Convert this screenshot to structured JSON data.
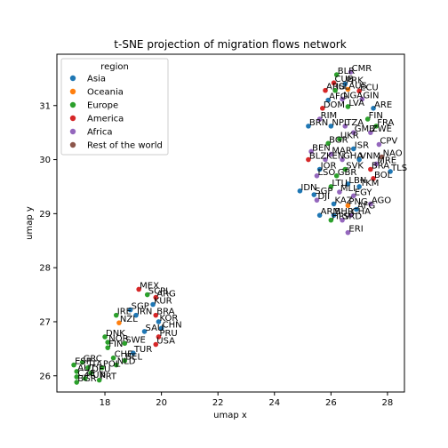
{
  "chart_data": {
    "type": "scatter",
    "title": "t-SNE projection of migration flows network",
    "xlabel": "umap x",
    "ylabel": "umap y",
    "xlim": [
      16.3,
      28.6
    ],
    "ylim": [
      25.7,
      31.95
    ],
    "xticks": [
      18,
      20,
      22,
      24,
      26,
      28
    ],
    "yticks": [
      26,
      27,
      28,
      29,
      30,
      31
    ],
    "grid": false,
    "legend": {
      "title": "region",
      "placement": "top-left",
      "entries": [
        {
          "name": "Asia",
          "color": "#1f77b4"
        },
        {
          "name": "Oceania",
          "color": "#ff7f0e"
        },
        {
          "name": "Europe",
          "color": "#2ca02c"
        },
        {
          "name": "America",
          "color": "#d62728"
        },
        {
          "name": "Africa",
          "color": "#9467bd"
        },
        {
          "name": "Rest of the world",
          "color": "#8c564b"
        }
      ]
    },
    "points": [
      {
        "label": "CMR",
        "x": 26.7,
        "y": 31.62,
        "region": "Africa"
      },
      {
        "label": "BLR",
        "x": 26.2,
        "y": 31.57,
        "region": "Europe"
      },
      {
        "label": "CUB",
        "x": 26.1,
        "y": 31.42,
        "region": "America"
      },
      {
        "label": "PRK",
        "x": 26.5,
        "y": 31.4,
        "region": "Asia"
      },
      {
        "label": "ARG",
        "x": 25.8,
        "y": 31.28,
        "region": "America"
      },
      {
        "label": "ISL",
        "x": 26.15,
        "y": 31.28,
        "region": "Europe"
      },
      {
        "label": "AUS",
        "x": 26.6,
        "y": 31.3,
        "region": "Oceania"
      },
      {
        "label": "ECU",
        "x": 27.0,
        "y": 31.27,
        "region": "America"
      },
      {
        "label": "AFG",
        "x": 25.9,
        "y": 31.1,
        "region": "Asia"
      },
      {
        "label": "NGA",
        "x": 26.4,
        "y": 31.12,
        "region": "Africa"
      },
      {
        "label": "GIN",
        "x": 27.1,
        "y": 31.12,
        "region": "Africa"
      },
      {
        "label": "DOM",
        "x": 25.7,
        "y": 30.95,
        "region": "America"
      },
      {
        "label": "LVA",
        "x": 26.6,
        "y": 30.98,
        "region": "Europe"
      },
      {
        "label": "ARE",
        "x": 27.5,
        "y": 30.95,
        "region": "Asia"
      },
      {
        "label": "RIM",
        "x": 25.6,
        "y": 30.75,
        "region": "Africa"
      },
      {
        "label": "FIN",
        "x": 27.3,
        "y": 30.75,
        "region": "Europe"
      },
      {
        "label": "BRN",
        "x": 25.2,
        "y": 30.62,
        "region": "Asia"
      },
      {
        "label": "NPL",
        "x": 26.0,
        "y": 30.62,
        "region": "Asia"
      },
      {
        "label": "TZA",
        "x": 26.5,
        "y": 30.62,
        "region": "Africa"
      },
      {
        "label": "FRA",
        "x": 27.6,
        "y": 30.62,
        "region": "Europe"
      },
      {
        "label": "GMB",
        "x": 26.8,
        "y": 30.5,
        "region": "Africa"
      },
      {
        "label": "ZWE",
        "x": 27.4,
        "y": 30.5,
        "region": "Africa"
      },
      {
        "label": "UKR",
        "x": 26.3,
        "y": 30.38,
        "region": "Europe"
      },
      {
        "label": "BGR",
        "x": 25.9,
        "y": 30.3,
        "region": "Europe"
      },
      {
        "label": "CPV",
        "x": 27.7,
        "y": 30.28,
        "region": "Africa"
      },
      {
        "label": "ISR",
        "x": 26.8,
        "y": 30.2,
        "region": "Asia"
      },
      {
        "label": "BEN",
        "x": 25.3,
        "y": 30.15,
        "region": "Africa"
      },
      {
        "label": "MAR",
        "x": 26.0,
        "y": 30.1,
        "region": "Africa"
      },
      {
        "label": "NAO",
        "x": 27.8,
        "y": 30.05,
        "region": "Rest of the world"
      },
      {
        "label": "BLZ",
        "x": 25.2,
        "y": 30.0,
        "region": "America"
      },
      {
        "label": "KEN",
        "x": 25.8,
        "y": 30.0,
        "region": "Africa"
      },
      {
        "label": "GHA",
        "x": 26.4,
        "y": 30.0,
        "region": "Africa"
      },
      {
        "label": "VNM",
        "x": 27.0,
        "y": 30.0,
        "region": "Asia"
      },
      {
        "label": "MRE",
        "x": 27.6,
        "y": 29.92,
        "region": "Africa"
      },
      {
        "label": "JOR",
        "x": 25.6,
        "y": 29.82,
        "region": "Asia"
      },
      {
        "label": "SVK",
        "x": 26.5,
        "y": 29.82,
        "region": "Europe"
      },
      {
        "label": "BRA",
        "x": 27.4,
        "y": 29.82,
        "region": "America"
      },
      {
        "label": "TLS",
        "x": 28.1,
        "y": 29.78,
        "region": "Asia"
      },
      {
        "label": "GBR",
        "x": 26.2,
        "y": 29.7,
        "region": "Europe"
      },
      {
        "label": "BOL",
        "x": 27.5,
        "y": 29.65,
        "region": "America"
      },
      {
        "label": "LSO",
        "x": 25.5,
        "y": 29.7,
        "region": "Africa"
      },
      {
        "label": "LBN",
        "x": 26.6,
        "y": 29.55,
        "region": "Asia"
      },
      {
        "label": "LTU",
        "x": 26.0,
        "y": 29.5,
        "region": "Europe"
      },
      {
        "label": "TKM",
        "x": 27.0,
        "y": 29.5,
        "region": "Asia"
      },
      {
        "label": "IDN",
        "x": 24.9,
        "y": 29.42,
        "region": "Asia"
      },
      {
        "label": "SGP",
        "x": 25.4,
        "y": 29.35,
        "region": "Asia"
      },
      {
        "label": "MLI",
        "x": 26.3,
        "y": 29.4,
        "region": "Africa"
      },
      {
        "label": "EGY",
        "x": 26.8,
        "y": 29.33,
        "region": "Africa"
      },
      {
        "label": "DJI",
        "x": 25.5,
        "y": 29.25,
        "region": "Africa"
      },
      {
        "label": "KAZ",
        "x": 26.1,
        "y": 29.18,
        "region": "Asia"
      },
      {
        "label": "AGO",
        "x": 27.4,
        "y": 29.18,
        "region": "Africa"
      },
      {
        "label": "PNG",
        "x": 26.6,
        "y": 29.15,
        "region": "Oceania"
      },
      {
        "label": "AFG",
        "x": 26.9,
        "y": 29.08,
        "region": "Asia"
      },
      {
        "label": "ARM",
        "x": 25.6,
        "y": 28.97,
        "region": "Asia"
      },
      {
        "label": "BHR",
        "x": 26.1,
        "y": 28.97,
        "region": "Asia"
      },
      {
        "label": "CHA",
        "x": 26.7,
        "y": 28.97,
        "region": "Africa"
      },
      {
        "label": "HRV",
        "x": 26.0,
        "y": 28.88,
        "region": "Europe"
      },
      {
        "label": "SRD",
        "x": 26.4,
        "y": 28.88,
        "region": "Africa"
      },
      {
        "label": "ERI",
        "x": 26.6,
        "y": 28.65,
        "region": "Africa"
      },
      {
        "label": "MEX",
        "x": 19.2,
        "y": 27.6,
        "region": "America"
      },
      {
        "label": "SCPL",
        "x": 19.5,
        "y": 27.5,
        "region": "Europe"
      },
      {
        "label": "ARG",
        "x": 19.8,
        "y": 27.45,
        "region": "America"
      },
      {
        "label": "KUR",
        "x": 19.7,
        "y": 27.32,
        "region": "Asia"
      },
      {
        "label": "SGP",
        "x": 18.9,
        "y": 27.22,
        "region": "Asia"
      },
      {
        "label": "IRE",
        "x": 18.4,
        "y": 27.12,
        "region": "Europe"
      },
      {
        "label": "IRN",
        "x": 19.1,
        "y": 27.12,
        "region": "Asia"
      },
      {
        "label": "BRA",
        "x": 19.8,
        "y": 27.12,
        "region": "America"
      },
      {
        "label": "NZL",
        "x": 18.5,
        "y": 26.98,
        "region": "Oceania"
      },
      {
        "label": "KOR",
        "x": 19.9,
        "y": 27.0,
        "region": "Asia"
      },
      {
        "label": "CHN",
        "x": 20.0,
        "y": 26.88,
        "region": "Asia"
      },
      {
        "label": "SAU",
        "x": 19.4,
        "y": 26.82,
        "region": "Asia"
      },
      {
        "label": "DNK",
        "x": 18.0,
        "y": 26.72,
        "region": "Europe"
      },
      {
        "label": "PRU",
        "x": 19.9,
        "y": 26.72,
        "region": "America"
      },
      {
        "label": "NOR",
        "x": 18.1,
        "y": 26.62,
        "region": "Europe"
      },
      {
        "label": "SWE",
        "x": 18.7,
        "y": 26.6,
        "region": "Europe"
      },
      {
        "label": "USA",
        "x": 19.8,
        "y": 26.58,
        "region": "America"
      },
      {
        "label": "FIN",
        "x": 18.1,
        "y": 26.52,
        "region": "Europe"
      },
      {
        "label": "TUR",
        "x": 19.0,
        "y": 26.42,
        "region": "Asia"
      },
      {
        "label": "CHE",
        "x": 18.3,
        "y": 26.33,
        "region": "Europe"
      },
      {
        "label": "BEL",
        "x": 18.7,
        "y": 26.28,
        "region": "Europe"
      },
      {
        "label": "NLD",
        "x": 18.4,
        "y": 26.2,
        "region": "Europe"
      },
      {
        "label": "GRC",
        "x": 17.2,
        "y": 26.25,
        "region": "Europe"
      },
      {
        "label": "ESP",
        "x": 16.9,
        "y": 26.2,
        "region": "Europe"
      },
      {
        "label": "ITA",
        "x": 17.4,
        "y": 26.15,
        "region": "Europe"
      },
      {
        "label": "POL",
        "x": 17.9,
        "y": 26.15,
        "region": "Europe"
      },
      {
        "label": "AUT",
        "x": 17.0,
        "y": 26.08,
        "region": "Europe"
      },
      {
        "label": "DEU",
        "x": 17.5,
        "y": 26.05,
        "region": "Europe"
      },
      {
        "label": "CZE",
        "x": 17.0,
        "y": 25.98,
        "region": "Europe"
      },
      {
        "label": "HUN",
        "x": 17.3,
        "y": 25.95,
        "region": "Europe"
      },
      {
        "label": "PRT",
        "x": 17.8,
        "y": 25.92,
        "region": "Europe"
      },
      {
        "label": "BGR",
        "x": 17.0,
        "y": 25.88,
        "region": "Europe"
      }
    ]
  }
}
